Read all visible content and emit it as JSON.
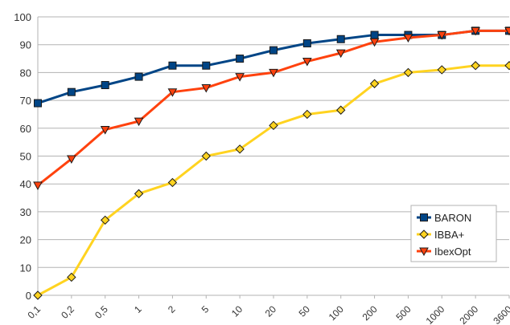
{
  "chart_data": {
    "type": "line",
    "title": "",
    "xlabel": "",
    "ylabel": "",
    "x": [
      "0,1",
      "0,2",
      "0,5",
      "1",
      "2",
      "5",
      "10",
      "20",
      "50",
      "100",
      "200",
      "500",
      "1000",
      "2000",
      "3600"
    ],
    "y_ticks": [
      "0",
      "10",
      "20",
      "30",
      "40",
      "50",
      "60",
      "70",
      "80",
      "90",
      "100"
    ],
    "ylim": [
      0,
      100
    ],
    "grid": "horizontal",
    "legend_position": "right",
    "series": [
      {
        "name": "BARON",
        "color": "#004586",
        "marker": "square",
        "values": [
          69,
          73,
          75.5,
          78.5,
          82.5,
          82.5,
          85,
          88,
          90.5,
          92,
          93.5,
          93.5,
          93.5,
          95,
          95
        ]
      },
      {
        "name": "IBBA+",
        "color": "#ffd320",
        "marker": "diamond",
        "values": [
          0,
          6.5,
          27,
          36.5,
          40.5,
          50,
          52.5,
          61,
          65,
          66.5,
          76,
          80,
          81,
          82.5,
          82.5
        ]
      },
      {
        "name": "IbexOpt",
        "color": "#ff420e",
        "marker": "triangle-down",
        "values": [
          39.5,
          49,
          59.5,
          62.5,
          73,
          74.5,
          78.5,
          80,
          84,
          87,
          91,
          92.5,
          93.5,
          95,
          95
        ]
      }
    ]
  }
}
